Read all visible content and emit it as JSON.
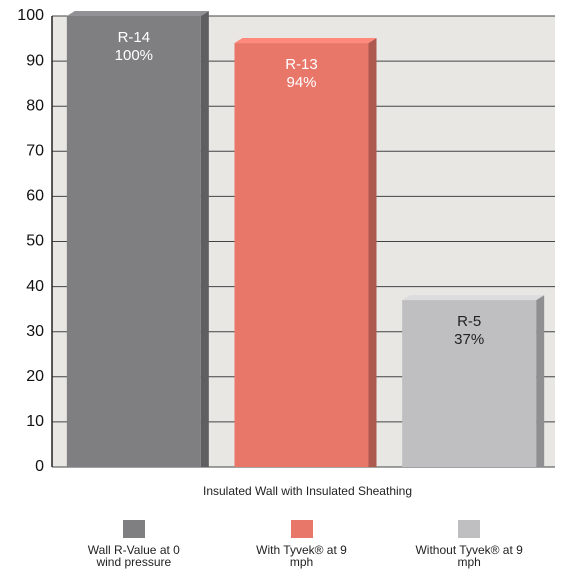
{
  "chart_data": {
    "type": "bar",
    "categories": [
      "Insulated Wall with Insulated Sheathing"
    ],
    "series": [
      {
        "name": "Wall R-Value at 0 wind pressure",
        "color": "#7f7f82",
        "label_color": "#ffffff",
        "values": [
          100
        ],
        "value_labels": [
          "100%"
        ],
        "r_values": [
          "R-14"
        ]
      },
      {
        "name": "With Tyvek® at 9 mph",
        "color": "#e8776a",
        "label_color": "#ffffff",
        "values": [
          94
        ],
        "value_labels": [
          "94%"
        ],
        "r_values": [
          "R-13"
        ]
      },
      {
        "name": "Without Tyvek® at 9 mph",
        "color": "#bfbfc2",
        "label_color": "#222222",
        "values": [
          37
        ],
        "value_labels": [
          "37%"
        ],
        "r_values": [
          "R-5"
        ]
      }
    ],
    "ylim": [
      0,
      100
    ],
    "yticks": [
      0,
      10,
      20,
      30,
      40,
      50,
      60,
      70,
      80,
      90,
      100
    ],
    "grid": true
  }
}
